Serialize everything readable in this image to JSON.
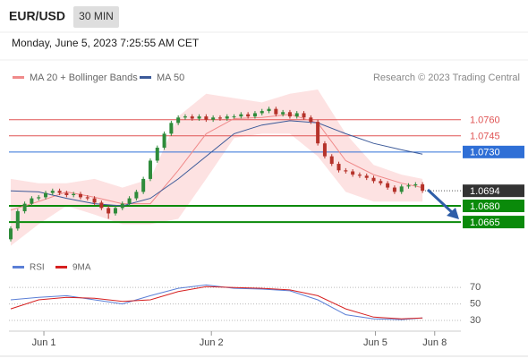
{
  "header": {
    "symbol": "EUR/USD",
    "timeframe": "30 MIN",
    "timestamp": "Monday, June 5, 2023 7:25:55 AM CET"
  },
  "chart_data": [
    {
      "type": "candlestick",
      "source": "Research © 2023 Trading Central",
      "xlim": [
        0,
        129
      ],
      "ylim": [
        1.0636,
        1.0788
      ],
      "up_color": "#2e8b3a",
      "down_color": "#b5322a",
      "x": [
        0,
        2,
        4,
        6,
        8,
        10,
        12,
        14,
        16,
        18,
        20,
        22,
        24,
        26,
        28,
        30,
        32,
        34,
        36,
        38,
        40,
        42,
        44,
        46,
        48,
        50,
        52,
        54,
        56,
        58,
        60,
        62,
        64,
        66,
        68,
        70,
        72,
        74,
        76,
        78,
        80,
        82,
        84,
        86,
        88,
        90,
        92,
        94,
        96,
        98,
        100,
        102,
        104,
        106,
        108,
        110,
        112,
        114,
        116,
        118
      ],
      "open": [
        1.0649,
        1.0659,
        1.0675,
        1.0682,
        1.0687,
        1.0688,
        1.0692,
        1.0694,
        1.0692,
        1.069,
        1.0691,
        1.0688,
        1.0687,
        1.0683,
        1.0678,
        1.0673,
        1.0678,
        1.0682,
        1.0687,
        1.0693,
        1.0705,
        1.0722,
        1.0734,
        1.0747,
        1.0757,
        1.0762,
        1.0763,
        1.0761,
        1.0763,
        1.076,
        1.0762,
        1.0761,
        1.0763,
        1.0763,
        1.0765,
        1.0763,
        1.0766,
        1.0768,
        1.077,
        1.0765,
        1.0767,
        1.0763,
        1.0766,
        1.0762,
        1.0758,
        1.0738,
        1.0726,
        1.0719,
        1.0713,
        1.0712,
        1.0709,
        1.0708,
        1.0706,
        1.0703,
        1.0701,
        1.0697,
        1.0693,
        1.0698,
        1.0699,
        1.07
      ],
      "high": [
        1.0661,
        1.0677,
        1.0684,
        1.0689,
        1.069,
        1.0694,
        1.0696,
        1.0696,
        1.0694,
        1.0693,
        1.0693,
        1.069,
        1.0689,
        1.0685,
        1.068,
        1.068,
        1.0684,
        1.0689,
        1.0695,
        1.0707,
        1.0724,
        1.0736,
        1.0749,
        1.0759,
        1.0764,
        1.0765,
        1.0765,
        1.0765,
        1.0765,
        1.0764,
        1.0764,
        1.0765,
        1.0765,
        1.0767,
        1.0767,
        1.0768,
        1.077,
        1.0772,
        1.0772,
        1.0769,
        1.0769,
        1.0768,
        1.0768,
        1.0764,
        1.076,
        1.074,
        1.0728,
        1.0721,
        1.0715,
        1.0714,
        1.0711,
        1.071,
        1.0708,
        1.0705,
        1.0703,
        1.0699,
        1.07,
        1.0701,
        1.0702,
        1.0702
      ],
      "low": [
        1.0647,
        1.0657,
        1.0673,
        1.068,
        1.0685,
        1.0686,
        1.069,
        1.069,
        1.0688,
        1.0688,
        1.0686,
        1.0685,
        1.0681,
        1.0676,
        1.0668,
        1.0671,
        1.0676,
        1.068,
        1.0685,
        1.0691,
        1.0703,
        1.072,
        1.0732,
        1.0745,
        1.0755,
        1.076,
        1.0759,
        1.0759,
        1.0758,
        1.0758,
        1.0759,
        1.0759,
        1.0761,
        1.0761,
        1.0761,
        1.0761,
        1.0764,
        1.0766,
        1.0763,
        1.0763,
        1.0761,
        1.0761,
        1.076,
        1.0756,
        1.0736,
        1.0724,
        1.0717,
        1.0711,
        1.071,
        1.0707,
        1.0706,
        1.0704,
        1.0701,
        1.0699,
        1.0695,
        1.0691,
        1.0691,
        1.0696,
        1.0697,
        1.0692
      ],
      "close": [
        1.0659,
        1.0675,
        1.0682,
        1.0687,
        1.0688,
        1.0692,
        1.0694,
        1.0692,
        1.069,
        1.0691,
        1.0688,
        1.0687,
        1.0683,
        1.0678,
        1.0673,
        1.0678,
        1.0682,
        1.0687,
        1.0693,
        1.0705,
        1.0722,
        1.0734,
        1.0747,
        1.0757,
        1.0762,
        1.0763,
        1.0761,
        1.0763,
        1.076,
        1.0762,
        1.0761,
        1.0763,
        1.0763,
        1.0765,
        1.0763,
        1.0766,
        1.0768,
        1.077,
        1.0765,
        1.0767,
        1.0763,
        1.0766,
        1.0762,
        1.0758,
        1.0738,
        1.0726,
        1.0719,
        1.0713,
        1.0712,
        1.0709,
        1.0708,
        1.0706,
        1.0703,
        1.0701,
        1.0697,
        1.0693,
        1.0698,
        1.0699,
        1.07,
        1.0694
      ],
      "series": [
        {
          "name": "MA 20 + Bollinger Bands",
          "color": "#f08a8a",
          "band_color": "#fde2e2",
          "x": [
            0,
            8,
            16,
            24,
            32,
            40,
            48,
            56,
            64,
            72,
            80,
            88,
            96,
            104,
            112,
            118
          ],
          "values": [
            1.0676,
            1.0684,
            1.0693,
            1.0688,
            1.0682,
            1.0682,
            1.0713,
            1.0747,
            1.0761,
            1.0762,
            1.0765,
            1.0757,
            1.0722,
            1.0709,
            1.0701,
            1.0697
          ],
          "upper": [
            1.0705,
            1.0701,
            1.0701,
            1.0705,
            1.0697,
            1.0705,
            1.0763,
            1.0784,
            1.078,
            1.0776,
            1.0784,
            1.0788,
            1.0747,
            1.0718,
            1.0709,
            1.0705
          ],
          "lower": [
            1.0643,
            1.0663,
            1.068,
            1.0672,
            1.0663,
            1.0663,
            1.0668,
            1.0705,
            1.0743,
            1.0747,
            1.0747,
            1.0726,
            1.0693,
            1.0684,
            1.0684,
            1.0684
          ]
        },
        {
          "name": "MA 50",
          "color": "#3c5a99",
          "x": [
            0,
            8,
            16,
            24,
            32,
            40,
            48,
            56,
            64,
            72,
            80,
            88,
            96,
            104,
            112,
            118
          ],
          "values": [
            1.0694,
            1.0693,
            1.0687,
            1.0682,
            1.068,
            1.0687,
            1.0705,
            1.0726,
            1.0747,
            1.0755,
            1.0759,
            1.0757,
            1.0747,
            1.0738,
            1.0732,
            1.0728
          ]
        }
      ],
      "levels": [
        {
          "value": 1.076,
          "label": "1.0760",
          "color": "#e05555",
          "line": "solid",
          "boxed": false
        },
        {
          "value": 1.0745,
          "label": "1.0745",
          "color": "#e05555",
          "line": "solid",
          "boxed": false
        },
        {
          "value": 1.073,
          "label": "1.0730",
          "color": "#2f6fd6",
          "line": "solid",
          "boxed": true
        },
        {
          "value": 1.0694,
          "label": "1.0694",
          "color": "#333333",
          "line": "dotted",
          "boxed": true
        },
        {
          "value": 1.068,
          "label": "1.0680",
          "color": "#0a8a0a",
          "line": "solid",
          "boxed": true
        },
        {
          "value": 1.0665,
          "label": "1.0665",
          "color": "#0a8a0a",
          "line": "solid",
          "boxed": true
        }
      ]
    },
    {
      "type": "line",
      "xlim": [
        0,
        129
      ],
      "ylim": [
        17,
        93
      ],
      "yticks": [
        70,
        50,
        30
      ],
      "xticks": [
        {
          "value": 9.5,
          "label": "Jun 1"
        },
        {
          "value": 57.5,
          "label": "Jun 2"
        },
        {
          "value": 104.5,
          "label": "Jun 5"
        },
        {
          "value": 121.5,
          "label": "Jun 8"
        }
      ],
      "series": [
        {
          "name": "RSI",
          "color": "#5b7fd6",
          "x": [
            0,
            8,
            16,
            24,
            32,
            40,
            48,
            56,
            64,
            72,
            80,
            88,
            96,
            104,
            112,
            118
          ],
          "values": [
            55,
            58,
            60,
            55,
            50,
            60,
            69,
            73,
            69,
            68,
            66,
            55,
            37,
            32,
            31,
            33
          ]
        },
        {
          "name": "9MA",
          "color": "#d62020",
          "x": [
            0,
            8,
            16,
            24,
            32,
            40,
            48,
            56,
            64,
            72,
            80,
            88,
            96,
            104,
            112,
            118
          ],
          "values": [
            44,
            55,
            58,
            57,
            53,
            55,
            65,
            71,
            70,
            69,
            67,
            60,
            44,
            34,
            32,
            33
          ]
        }
      ]
    }
  ]
}
